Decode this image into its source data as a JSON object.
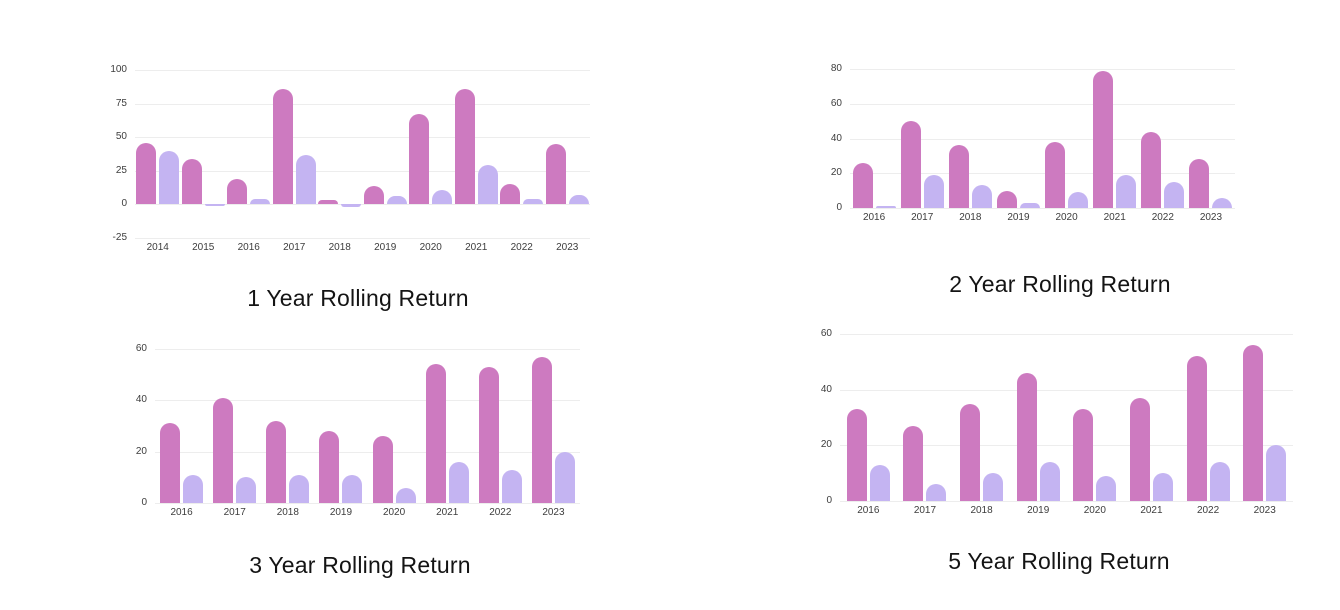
{
  "colors": {
    "series_pink": "#cd7ac0",
    "series_lavender": "#c4b4f2",
    "gridline": "#ededed",
    "axis_text": "#3d3d3d",
    "title_text": "#141414",
    "background": "#ffffff"
  },
  "chart_data": [
    {
      "type": "bar",
      "title": "1 Year Rolling Return",
      "categories": [
        "2014",
        "2015",
        "2016",
        "2017",
        "2018",
        "2019",
        "2020",
        "2021",
        "2022",
        "2023"
      ],
      "series": [
        {
          "name": "pink",
          "color": "#cd7ac0",
          "values": [
            46,
            34,
            19,
            86,
            3,
            14,
            67,
            86,
            15,
            45
          ]
        },
        {
          "name": "lavender",
          "color": "#c4b4f2",
          "values": [
            40,
            -1,
            4,
            37,
            -2,
            6,
            11,
            29,
            4,
            7
          ]
        }
      ],
      "ylim": [
        -25,
        100
      ],
      "yticks": [
        100,
        75,
        50,
        25,
        0,
        -25
      ],
      "grid": true,
      "legend": false,
      "xlabel": "",
      "ylabel": ""
    },
    {
      "type": "bar",
      "title": "2 Year Rolling Return",
      "categories": [
        "2016",
        "2017",
        "2018",
        "2019",
        "2020",
        "2021",
        "2022",
        "2023"
      ],
      "series": [
        {
          "name": "pink",
          "color": "#cd7ac0",
          "values": [
            26,
            50,
            36,
            10,
            38,
            79,
            44,
            28
          ]
        },
        {
          "name": "lavender",
          "color": "#c4b4f2",
          "values": [
            1,
            19,
            13,
            3,
            9,
            19,
            15,
            6
          ]
        }
      ],
      "ylim": [
        0,
        80
      ],
      "yticks": [
        80,
        60,
        40,
        20,
        0
      ],
      "grid": true,
      "legend": false,
      "xlabel": "",
      "ylabel": ""
    },
    {
      "type": "bar",
      "title": "3 Year Rolling Return",
      "categories": [
        "2016",
        "2017",
        "2018",
        "2019",
        "2020",
        "2021",
        "2022",
        "2023"
      ],
      "series": [
        {
          "name": "pink",
          "color": "#cd7ac0",
          "values": [
            31,
            41,
            32,
            28,
            26,
            54,
            53,
            57
          ]
        },
        {
          "name": "lavender",
          "color": "#c4b4f2",
          "values": [
            11,
            10,
            11,
            11,
            6,
            16,
            13,
            20
          ]
        }
      ],
      "ylim": [
        0,
        60
      ],
      "yticks": [
        60,
        40,
        20,
        0
      ],
      "grid": true,
      "legend": false,
      "xlabel": "",
      "ylabel": ""
    },
    {
      "type": "bar",
      "title": "5 Year Rolling Return",
      "categories": [
        "2016",
        "2017",
        "2018",
        "2019",
        "2020",
        "2021",
        "2022",
        "2023"
      ],
      "series": [
        {
          "name": "pink",
          "color": "#cd7ac0",
          "values": [
            33,
            27,
            35,
            46,
            33,
            37,
            52,
            56
          ]
        },
        {
          "name": "lavender",
          "color": "#c4b4f2",
          "values": [
            13,
            6,
            10,
            14,
            9,
            10,
            14,
            20
          ]
        }
      ],
      "ylim": [
        0,
        60
      ],
      "yticks": [
        60,
        40,
        20,
        0
      ],
      "grid": true,
      "legend": false,
      "xlabel": "",
      "ylabel": ""
    }
  ]
}
